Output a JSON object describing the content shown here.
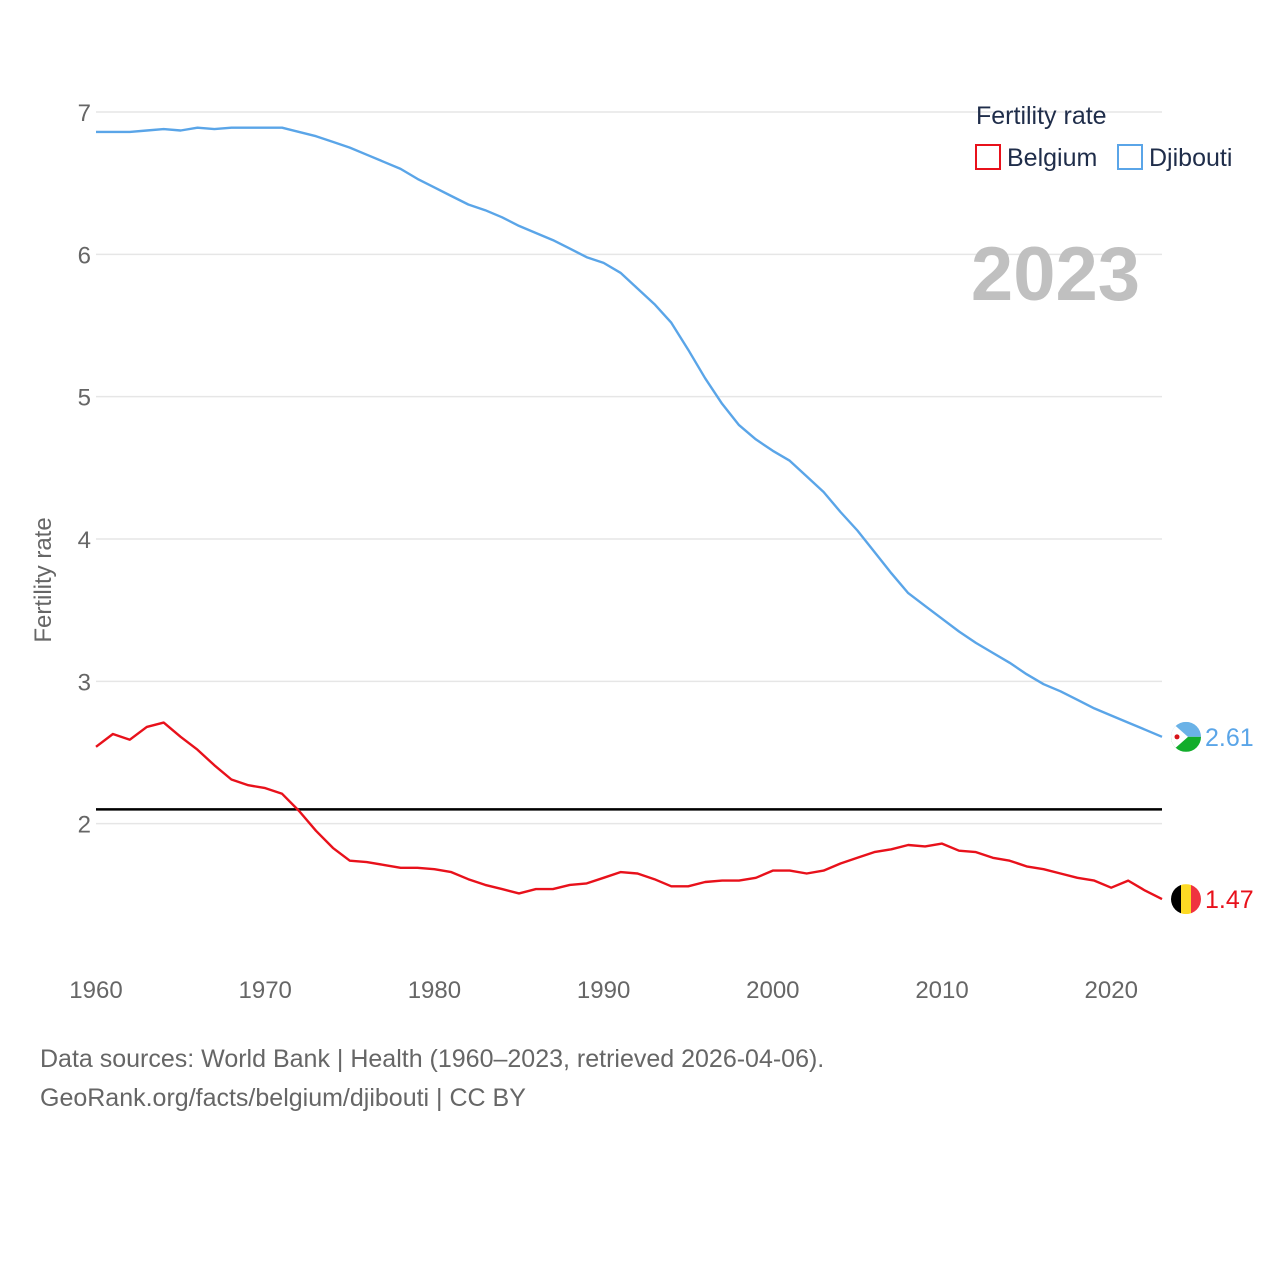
{
  "chart_data": {
    "type": "line",
    "title": "",
    "xlabel": "",
    "ylabel": "Fertility rate",
    "xlim": [
      1960,
      2023
    ],
    "ylim": [
      1.0,
      7.0
    ],
    "yticks": [
      2,
      3,
      4,
      5,
      6,
      7
    ],
    "xticks": [
      1960,
      1970,
      1980,
      1990,
      2000,
      2010,
      2020
    ],
    "year_label": "2023",
    "legend": {
      "title": "Fertility rate",
      "placement": "top-right",
      "entries": [
        "Belgium",
        "Djibouti"
      ]
    },
    "reference_line": {
      "value": 2.1,
      "color": "#000000"
    },
    "x": [
      1960,
      1961,
      1962,
      1963,
      1964,
      1965,
      1966,
      1967,
      1968,
      1969,
      1970,
      1971,
      1972,
      1973,
      1974,
      1975,
      1976,
      1977,
      1978,
      1979,
      1980,
      1981,
      1982,
      1983,
      1984,
      1985,
      1986,
      1987,
      1988,
      1989,
      1990,
      1991,
      1992,
      1993,
      1994,
      1995,
      1996,
      1997,
      1998,
      1999,
      2000,
      2001,
      2002,
      2003,
      2004,
      2005,
      2006,
      2007,
      2008,
      2009,
      2010,
      2011,
      2012,
      2013,
      2014,
      2015,
      2016,
      2017,
      2018,
      2019,
      2020,
      2021,
      2022,
      2023
    ],
    "series": [
      {
        "name": "Belgium",
        "color": "#e8111b",
        "end_label": "1.47",
        "values": [
          2.54,
          2.63,
          2.59,
          2.68,
          2.71,
          2.61,
          2.52,
          2.41,
          2.31,
          2.27,
          2.25,
          2.21,
          2.09,
          1.95,
          1.83,
          1.74,
          1.73,
          1.71,
          1.69,
          1.69,
          1.68,
          1.66,
          1.61,
          1.57,
          1.54,
          1.51,
          1.54,
          1.54,
          1.57,
          1.58,
          1.62,
          1.66,
          1.65,
          1.61,
          1.56,
          1.56,
          1.59,
          1.6,
          1.6,
          1.62,
          1.67,
          1.67,
          1.65,
          1.67,
          1.72,
          1.76,
          1.8,
          1.82,
          1.85,
          1.84,
          1.86,
          1.81,
          1.8,
          1.76,
          1.74,
          1.7,
          1.68,
          1.65,
          1.62,
          1.6,
          1.55,
          1.6,
          1.53,
          1.47
        ]
      },
      {
        "name": "Djibouti",
        "color": "#5aa5e8",
        "end_label": "2.61",
        "values": [
          6.86,
          6.86,
          6.86,
          6.87,
          6.88,
          6.87,
          6.89,
          6.88,
          6.89,
          6.89,
          6.89,
          6.89,
          6.86,
          6.83,
          6.79,
          6.75,
          6.7,
          6.65,
          6.6,
          6.53,
          6.47,
          6.41,
          6.35,
          6.31,
          6.26,
          6.2,
          6.15,
          6.1,
          6.04,
          5.98,
          5.94,
          5.87,
          5.76,
          5.65,
          5.52,
          5.33,
          5.13,
          4.95,
          4.8,
          4.7,
          4.62,
          4.55,
          4.44,
          4.33,
          4.19,
          4.06,
          3.91,
          3.76,
          3.62,
          3.53,
          3.44,
          3.35,
          3.27,
          3.2,
          3.13,
          3.05,
          2.98,
          2.93,
          2.87,
          2.81,
          2.76,
          2.71,
          2.66,
          2.61
        ]
      }
    ]
  },
  "footer": {
    "line1": "Data sources: World Bank | Health (1960–2023, retrieved 2026-04-06).",
    "line2": "GeoRank.org/facts/belgium/djibouti | CC BY"
  }
}
